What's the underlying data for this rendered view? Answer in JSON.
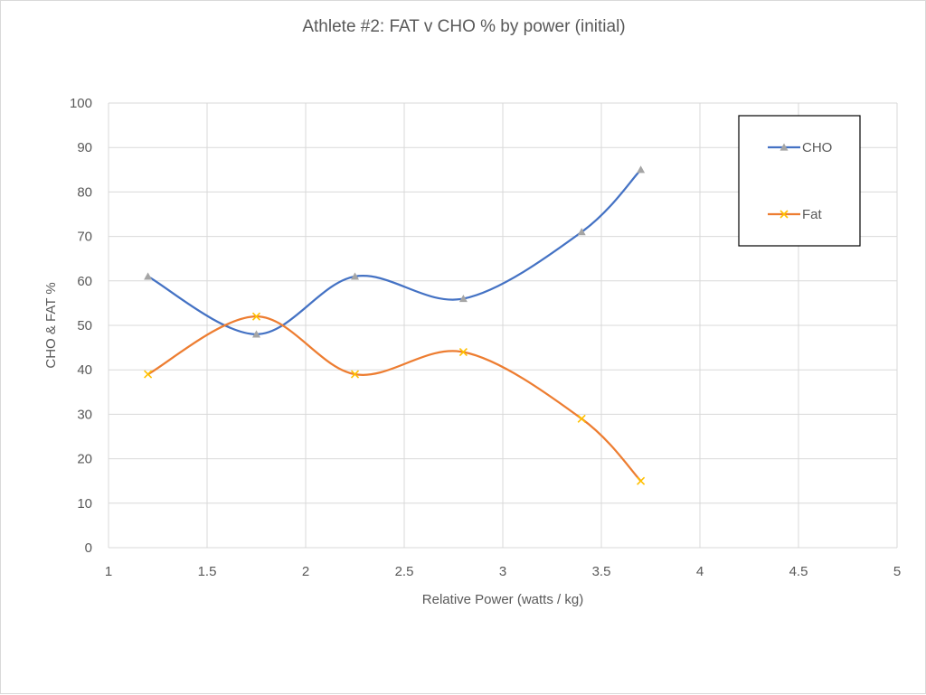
{
  "chart_data": {
    "type": "scatter",
    "title": "Athlete #2: FAT v CHO % by power (initial)",
    "xlabel": "Relative Power (watts / kg)",
    "ylabel": "CHO & FAT %",
    "xlim": [
      1,
      5
    ],
    "ylim": [
      0,
      100
    ],
    "x_ticks": [
      "1",
      "1.5",
      "2",
      "2.5",
      "3",
      "3.5",
      "4",
      "4.5",
      "5"
    ],
    "y_ticks": [
      "0",
      "10",
      "20",
      "30",
      "40",
      "50",
      "60",
      "70",
      "80",
      "90",
      "100"
    ],
    "grid": true,
    "smooth_lines": true,
    "legend_position": "top-right",
    "series": [
      {
        "name": "CHO",
        "color": "#4472c4",
        "marker_color": "#a5a5a5",
        "marker": "triangle",
        "x": [
          1.2,
          1.75,
          2.25,
          2.8,
          3.4,
          3.7
        ],
        "y": [
          61,
          48,
          61,
          56,
          71,
          85
        ]
      },
      {
        "name": "Fat",
        "color": "#ed7d31",
        "marker_color": "#ffc000",
        "marker": "x",
        "x": [
          1.2,
          1.75,
          2.25,
          2.8,
          3.4,
          3.7
        ],
        "y": [
          39,
          52,
          39,
          44,
          29,
          15
        ]
      }
    ]
  }
}
